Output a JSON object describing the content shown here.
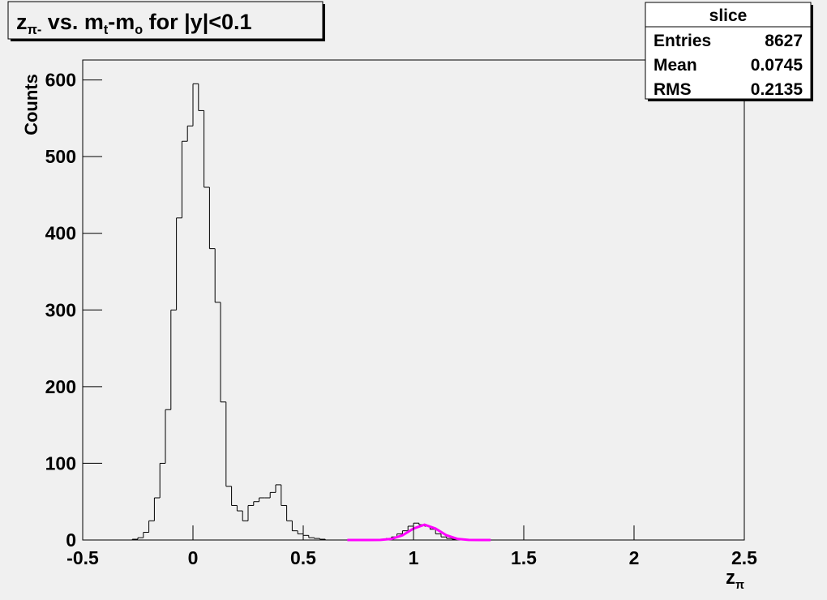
{
  "chart_data": {
    "type": "histogram",
    "title": [
      {
        "text": "z"
      },
      {
        "text": "π-",
        "sub": true
      },
      {
        "text": " vs. m"
      },
      {
        "text": "t",
        "sub": true
      },
      {
        "text": "-m"
      },
      {
        "text": "o",
        "sub": true
      },
      {
        "text": " for |y|<0.1"
      }
    ],
    "x_label": [
      {
        "text": "z"
      },
      {
        "text": "π",
        "sub": true
      }
    ],
    "y_label": "Counts",
    "color": "#000000",
    "bins": [
      -0.3,
      -0.275,
      -0.25,
      -0.225,
      -0.2,
      -0.175,
      -0.15,
      -0.125,
      -0.1,
      -0.075,
      -0.05,
      -0.025,
      0,
      0.025,
      0.05,
      0.075,
      0.1,
      0.125,
      0.15,
      0.175,
      0.2,
      0.225,
      0.25,
      0.275,
      0.3,
      0.325,
      0.35,
      0.375,
      0.4,
      0.425,
      0.45,
      0.475,
      0.5,
      0.525,
      0.55,
      0.575,
      0.6,
      0.625,
      0.65,
      0.675,
      0.7,
      0.725,
      0.75,
      0.775,
      0.8,
      0.825,
      0.85,
      0.875,
      0.9,
      0.925,
      0.95,
      0.975,
      1,
      1.025,
      1.05,
      1.075,
      1.1,
      1.125,
      1.15,
      1.175,
      1.2
    ],
    "values": [
      0,
      1,
      3,
      10,
      25,
      55,
      100,
      170,
      300,
      420,
      520,
      540,
      595,
      560,
      460,
      380,
      310,
      180,
      70,
      45,
      38,
      25,
      45,
      50,
      55,
      55,
      62,
      72,
      45,
      25,
      12,
      8,
      6,
      3,
      2,
      1,
      0,
      0,
      0,
      0,
      0,
      0,
      0,
      0,
      0,
      0,
      1,
      2,
      4,
      8,
      12,
      18,
      22,
      20,
      18,
      14,
      8,
      4,
      2,
      1
    ],
    "fit": {
      "color": "#ff00ff",
      "x": [
        0.7,
        0.75,
        0.8,
        0.85,
        0.9,
        0.95,
        1,
        1.05,
        1.1,
        1.15,
        1.2,
        1.25,
        1.3,
        1.35
      ],
      "values": [
        0,
        0,
        0.01,
        0.18,
        1.4,
        6.1,
        14.9,
        20,
        14.9,
        6.1,
        1.4,
        0.18,
        0.01,
        0
      ]
    },
    "xlim": [
      -0.5,
      2.5
    ],
    "xticks": [
      -0.5,
      0,
      0.5,
      1,
      1.5,
      2,
      2.5
    ],
    "ylim": [
      0,
      626
    ],
    "yticks": [
      0,
      100,
      200,
      300,
      400,
      500,
      600
    ],
    "stats": {
      "title": "slice",
      "rows": [
        [
          "Entries",
          8627
        ],
        [
          "Mean",
          0.0745
        ],
        [
          "RMS",
          0.2135
        ]
      ]
    }
  }
}
